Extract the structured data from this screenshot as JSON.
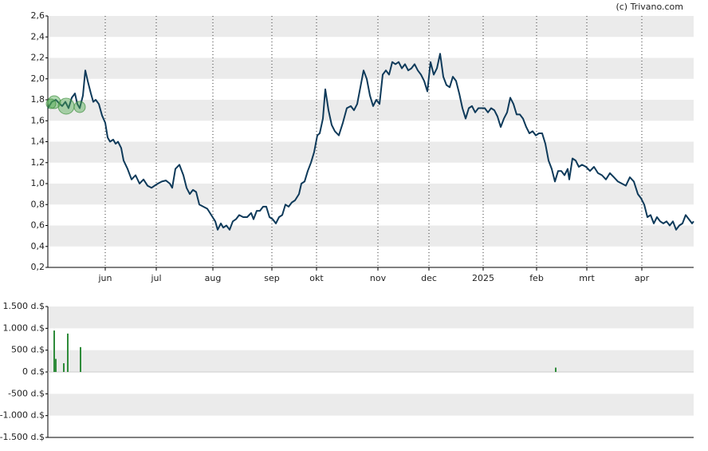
{
  "annotation": "(c) Trivano.com",
  "chart_data": [
    {
      "type": "line",
      "color": "#0e3a5a",
      "grid": true,
      "xlim": [
        0,
        405
      ],
      "xticks": [
        {
          "value": 36,
          "label": "jun"
        },
        {
          "value": 68,
          "label": "jul"
        },
        {
          "value": 103.5,
          "label": "aug"
        },
        {
          "value": 140.5,
          "label": "sep"
        },
        {
          "value": 168.5,
          "label": "okt"
        },
        {
          "value": 207,
          "label": "nov"
        },
        {
          "value": 239,
          "label": "dec"
        },
        {
          "value": 273,
          "label": "2025"
        },
        {
          "value": 306.5,
          "label": "feb"
        },
        {
          "value": 338,
          "label": "mrt"
        },
        {
          "value": 372.5,
          "label": "apr"
        }
      ],
      "ylim": [
        0.2,
        2.6
      ],
      "yticks": [
        {
          "value": 0.2,
          "label": "0,2"
        },
        {
          "value": 0.4,
          "label": "0,4"
        },
        {
          "value": 0.6,
          "label": "0,6"
        },
        {
          "value": 0.8,
          "label": "0,8"
        },
        {
          "value": 1.0,
          "label": "1,0"
        },
        {
          "value": 1.2,
          "label": "1,2"
        },
        {
          "value": 1.4,
          "label": "1,4"
        },
        {
          "value": 1.6,
          "label": "1,6"
        },
        {
          "value": 1.8,
          "label": "1,8"
        },
        {
          "value": 2.0,
          "label": "2,0"
        },
        {
          "value": 2.2,
          "label": "2,2"
        },
        {
          "value": 2.4,
          "label": "2,4"
        },
        {
          "value": 2.6,
          "label": "2,6"
        }
      ],
      "x": [
        0,
        2.5,
        5,
        7.5,
        9,
        11,
        13,
        15,
        17,
        18.5,
        20,
        22,
        23.5,
        25,
        27,
        28.5,
        30,
        32,
        34,
        36,
        37.5,
        39,
        41,
        42.5,
        44,
        46,
        47.5,
        50,
        52.5,
        55,
        57.5,
        60,
        62.5,
        65,
        67,
        69,
        71.5,
        74,
        76.5,
        78,
        80,
        82.5,
        85,
        87,
        89,
        91,
        93,
        95,
        97.5,
        100,
        102.5,
        105,
        106.5,
        108.5,
        110,
        112,
        114,
        116,
        118,
        120,
        122.5,
        125,
        127.5,
        129,
        131,
        133,
        135,
        137,
        139,
        141,
        143,
        145,
        147,
        149,
        151,
        153,
        155,
        157.5,
        159,
        161,
        163,
        165,
        167,
        169,
        170.5,
        172.5,
        174,
        176,
        178,
        180,
        182.5,
        185,
        187.5,
        190,
        192,
        194,
        196,
        198,
        200,
        202,
        204,
        206,
        208,
        210,
        212,
        214,
        216,
        218,
        220,
        222,
        224,
        226,
        228,
        230,
        232,
        234,
        236,
        238,
        240,
        242,
        244,
        246,
        248,
        250,
        252,
        254,
        256,
        258,
        260,
        262,
        264,
        266,
        268,
        270,
        272,
        274,
        276,
        278,
        280,
        282,
        284,
        286,
        288,
        290,
        292,
        294,
        296,
        298,
        300,
        302,
        304,
        306,
        308,
        310,
        312,
        314,
        316,
        318,
        320,
        322,
        324,
        326,
        327,
        329,
        331,
        333,
        335,
        337.5,
        340,
        342.5,
        345,
        347.5,
        350,
        352.5,
        355,
        357.5,
        360,
        362.5,
        365,
        367.5,
        370,
        372,
        374,
        376,
        378,
        380,
        382,
        384,
        386,
        388,
        390,
        392,
        394,
        396,
        398,
        400,
        402,
        404,
        405
      ],
      "values": [
        1.72,
        1.78,
        1.8,
        1.76,
        1.74,
        1.78,
        1.72,
        1.82,
        1.86,
        1.76,
        1.72,
        1.84,
        2.08,
        1.98,
        1.86,
        1.78,
        1.8,
        1.76,
        1.65,
        1.58,
        1.44,
        1.4,
        1.42,
        1.38,
        1.4,
        1.34,
        1.22,
        1.14,
        1.04,
        1.08,
        1.0,
        1.04,
        0.98,
        0.96,
        0.98,
        1.0,
        1.02,
        1.03,
        1.0,
        0.96,
        1.14,
        1.18,
        1.08,
        0.96,
        0.9,
        0.94,
        0.92,
        0.8,
        0.78,
        0.76,
        0.7,
        0.64,
        0.56,
        0.62,
        0.58,
        0.6,
        0.56,
        0.64,
        0.66,
        0.7,
        0.68,
        0.68,
        0.72,
        0.66,
        0.74,
        0.74,
        0.78,
        0.78,
        0.68,
        0.66,
        0.62,
        0.68,
        0.7,
        0.8,
        0.78,
        0.82,
        0.84,
        0.9,
        1.0,
        1.02,
        1.12,
        1.2,
        1.3,
        1.46,
        1.48,
        1.62,
        1.9,
        1.7,
        1.56,
        1.5,
        1.46,
        1.58,
        1.72,
        1.74,
        1.7,
        1.76,
        1.92,
        2.08,
        2.0,
        1.84,
        1.74,
        1.8,
        1.76,
        2.04,
        2.08,
        2.04,
        2.16,
        2.14,
        2.16,
        2.1,
        2.14,
        2.08,
        2.1,
        2.14,
        2.08,
        2.04,
        1.98,
        1.88,
        2.16,
        2.04,
        2.1,
        2.24,
        2.02,
        1.94,
        1.92,
        2.02,
        1.98,
        1.86,
        1.72,
        1.62,
        1.72,
        1.74,
        1.68,
        1.72,
        1.72,
        1.72,
        1.68,
        1.72,
        1.7,
        1.64,
        1.54,
        1.62,
        1.68,
        1.82,
        1.76,
        1.66,
        1.66,
        1.62,
        1.54,
        1.48,
        1.5,
        1.46,
        1.48,
        1.48,
        1.38,
        1.22,
        1.14,
        1.02,
        1.12,
        1.12,
        1.08,
        1.14,
        1.04,
        1.24,
        1.22,
        1.16,
        1.18,
        1.16,
        1.12,
        1.16,
        1.1,
        1.08,
        1.04,
        1.1,
        1.06,
        1.02,
        1.0,
        0.98,
        1.06,
        1.02,
        0.9,
        0.86,
        0.8,
        0.68,
        0.7,
        0.62,
        0.68,
        0.64,
        0.62,
        0.64,
        0.6,
        0.64,
        0.56,
        0.6,
        0.62,
        0.7,
        0.66,
        0.62,
        0.64
      ]
    },
    {
      "type": "bar",
      "color": "#2e8b3a",
      "grid": true,
      "xlim": [
        0,
        405
      ],
      "ylim": [
        -1500,
        1500
      ],
      "yticks": [
        {
          "value": -1500,
          "label": "-1.500 d.$"
        },
        {
          "value": -1000,
          "label": "-1.000 d.$"
        },
        {
          "value": -500,
          "label": "-500 d.$"
        },
        {
          "value": 0,
          "label": "0 d.$"
        },
        {
          "value": 500,
          "label": "500 d.$"
        },
        {
          "value": 1000,
          "label": "1.000 d.$"
        },
        {
          "value": 1500,
          "label": "1.500 d.$"
        }
      ],
      "x": [
        4,
        5,
        10,
        12.5,
        20.5,
        318.5
      ],
      "values": [
        950,
        300,
        200,
        880,
        570,
        100
      ]
    }
  ]
}
